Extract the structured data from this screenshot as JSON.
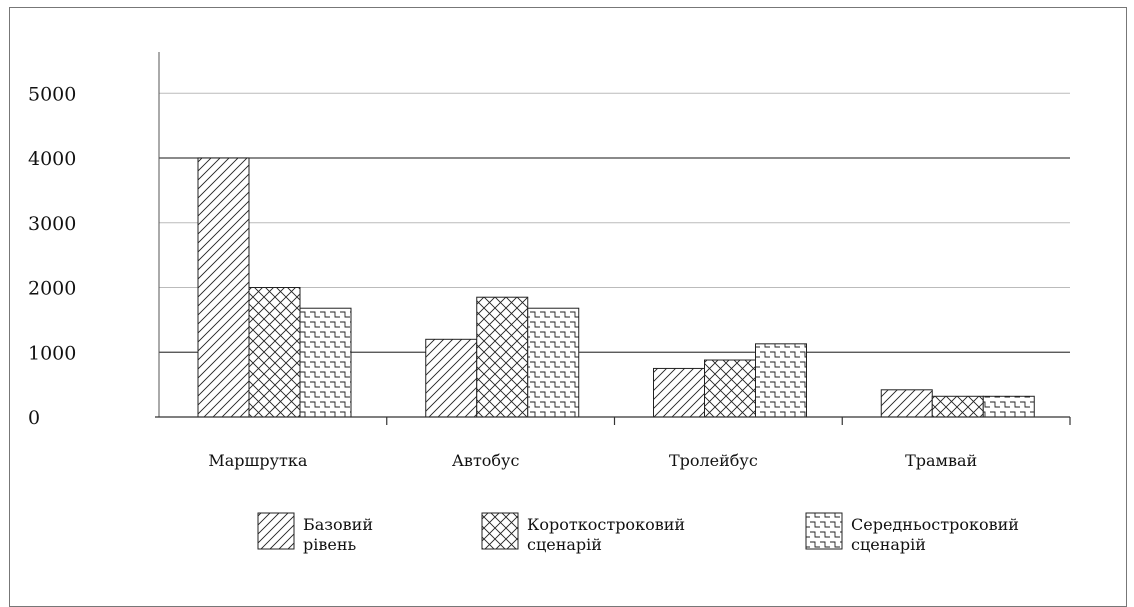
{
  "chart_data": {
    "type": "bar",
    "title": "",
    "xlabel": "",
    "ylabel": "",
    "ylim": [
      0,
      5000
    ],
    "yticks": [
      0,
      1000,
      2000,
      3000,
      4000,
      5000
    ],
    "grid": true,
    "legend_position": "bottom",
    "categories": [
      "Маршрутка",
      "Автобус",
      "Тролейбус",
      "Трамвай"
    ],
    "series": [
      {
        "name": "Базовий рівень",
        "pattern": "diagonal",
        "values": [
          4000,
          1200,
          750,
          420
        ]
      },
      {
        "name": "Короткостроковий сценарій",
        "pattern": "crosshatch",
        "values": [
          2000,
          1850,
          880,
          320
        ]
      },
      {
        "name": "Середньостроковий сценарій",
        "pattern": "brick",
        "values": [
          1680,
          1680,
          1130,
          320
        ]
      }
    ]
  }
}
